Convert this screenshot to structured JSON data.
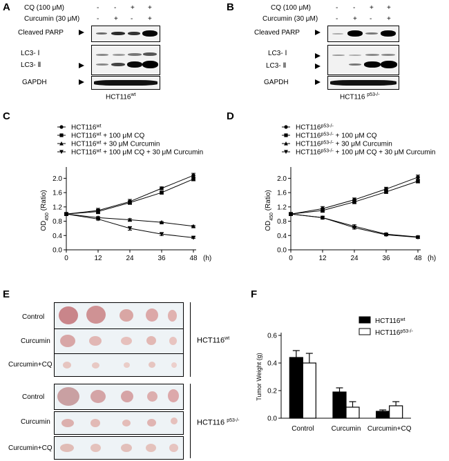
{
  "panels": {
    "A": {
      "letter": "A",
      "treatment_rows": [
        {
          "label": "CQ (100 μM)",
          "values": [
            "-",
            "-",
            "+",
            "+"
          ]
        },
        {
          "label": "Curcumin (30 μM)",
          "values": [
            "-",
            "+",
            "-",
            "+"
          ]
        }
      ],
      "blot_labels": [
        "Cleaved PARP",
        "LC3- Ⅰ",
        "LC3- Ⅱ",
        "GAPDH"
      ],
      "cell_line": "HCT116",
      "cell_line_sup": "wt"
    },
    "B": {
      "letter": "B",
      "treatment_rows": [
        {
          "label": "CQ (100 μM)",
          "values": [
            "-",
            "-",
            "+",
            "+"
          ]
        },
        {
          "label": "Curcumin (30 μM)",
          "values": [
            "-",
            "+",
            "-",
            "+"
          ]
        }
      ],
      "blot_labels": [
        "Cleaved PARP",
        "LC3- Ⅰ",
        "LC3- Ⅱ",
        "GAPDH"
      ],
      "cell_line": "HCT116 ",
      "cell_line_sup": "p53-/-"
    },
    "E": {
      "letter": "E",
      "row_labels": [
        "Control",
        "Curcumin",
        "Curcumin+CQ",
        "Control",
        "Curcumin",
        "Curcumin+CQ"
      ],
      "group1_name": "HCT116",
      "group1_sup": "wt",
      "group2_name": "HCT116 ",
      "group2_sup": "p53-/-"
    }
  },
  "chart_data": [
    {
      "panel": "C",
      "type": "line",
      "ylabel": "OD",
      "ylabel_sub": "450",
      "ylabel_suffix": " (Ratio)",
      "xunit": "(h)",
      "x": [
        0,
        12,
        24,
        36,
        48
      ],
      "xlim": [
        0,
        48
      ],
      "ylim": [
        0,
        2.2
      ],
      "yticks": [
        "0.0",
        "0.4",
        "0.8",
        "1.2",
        "1.6",
        "2.0"
      ],
      "xticks": [
        "0",
        "12",
        "24",
        "36",
        "48"
      ],
      "series": [
        {
          "name": "HCT116",
          "sup": "wt",
          "suffix": "",
          "marker": "circle",
          "values": [
            1.0,
            1.1,
            1.35,
            1.72,
            2.08
          ],
          "err": [
            0.03,
            0.06,
            0.06,
            0.04,
            0.06
          ]
        },
        {
          "name": "HCT116",
          "sup": "wt",
          "suffix": " + 100 μM CQ",
          "marker": "square",
          "values": [
            1.0,
            1.07,
            1.32,
            1.6,
            1.98
          ],
          "err": [
            0.03,
            0.06,
            0.05,
            0.04,
            0.05
          ]
        },
        {
          "name": "HCT116",
          "sup": "wt",
          "suffix": " + 30 μM Curcumin",
          "marker": "triangle-up",
          "values": [
            1.0,
            0.9,
            0.84,
            0.77,
            0.66
          ],
          "err": [
            0.02,
            0.03,
            0.03,
            0.02,
            0.02
          ]
        },
        {
          "name": "HCT116",
          "sup": "wt",
          "suffix": " + 100 μM CQ + 30 μM Curcumin",
          "marker": "triangle-down",
          "values": [
            1.0,
            0.86,
            0.6,
            0.44,
            0.34
          ],
          "err": [
            0.02,
            0.03,
            0.05,
            0.04,
            0.02
          ]
        }
      ]
    },
    {
      "panel": "D",
      "type": "line",
      "ylabel": "OD",
      "ylabel_sub": "450",
      "ylabel_suffix": " (Ratio)",
      "xunit": "(h)",
      "x": [
        0,
        12,
        24,
        36,
        48
      ],
      "xlim": [
        0,
        48
      ],
      "ylim": [
        0,
        2.2
      ],
      "yticks": [
        "0.0",
        "0.4",
        "0.8",
        "1.2",
        "1.6",
        "2.0"
      ],
      "xticks": [
        "0",
        "12",
        "24",
        "36",
        "48"
      ],
      "series": [
        {
          "name": "HCT116",
          "sup": "p53-/-",
          "suffix": "",
          "marker": "circle",
          "values": [
            1.0,
            1.15,
            1.4,
            1.7,
            2.03
          ],
          "err": [
            0.03,
            0.06,
            0.05,
            0.05,
            0.06
          ]
        },
        {
          "name": "HCT116",
          "sup": "p53-/-",
          "suffix": " + 100 μM CQ",
          "marker": "square",
          "values": [
            1.0,
            1.1,
            1.34,
            1.62,
            1.92
          ],
          "err": [
            0.03,
            0.05,
            0.05,
            0.04,
            0.05
          ]
        },
        {
          "name": "HCT116",
          "sup": "p53-/-",
          "suffix": " + 30 μM Curcumin",
          "marker": "triangle-up",
          "values": [
            1.0,
            0.9,
            0.66,
            0.44,
            0.36
          ],
          "err": [
            0.02,
            0.02,
            0.04,
            0.03,
            0.02
          ]
        },
        {
          "name": "HCT116",
          "sup": "p53-/-",
          "suffix": " + 100 μM CQ + 30 μM Curcumin",
          "marker": "triangle-down",
          "values": [
            1.0,
            0.9,
            0.62,
            0.42,
            0.35
          ],
          "err": [
            0.02,
            0.02,
            0.04,
            0.03,
            0.02
          ]
        }
      ]
    },
    {
      "panel": "F",
      "type": "bar",
      "ylabel": "Tumor Weight (g)",
      "categories": [
        "Control",
        "Curcumin",
        "Curcumin+CQ"
      ],
      "ylim": [
        0,
        0.6
      ],
      "yticks": [
        "0.0",
        "0.2",
        "0.4",
        "0.6"
      ],
      "series": [
        {
          "name": "HCT116",
          "sup": "wt",
          "color": "#000000",
          "values": [
            0.44,
            0.19,
            0.05
          ],
          "err": [
            0.05,
            0.03,
            0.01
          ]
        },
        {
          "name": "HCT116",
          "sup": "p53-/-",
          "color": "#ffffff",
          "values": [
            0.4,
            0.08,
            0.09
          ],
          "err": [
            0.07,
            0.04,
            0.03
          ]
        }
      ]
    }
  ]
}
